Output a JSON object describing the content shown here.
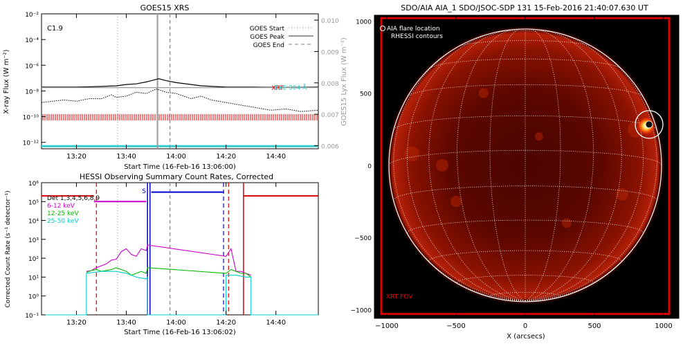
{
  "chart_data": [
    {
      "type": "line",
      "title": "GOES15 XRS",
      "xlabel": "Start Time (16-Feb-16 13:06:00)",
      "ylabel": "X-ray Flux (W m⁻²)",
      "ylabel_right": "GOES15 Lyx Flux (W m⁻²)",
      "annotation": "C1.9",
      "x_ticks": [
        "13:20",
        "13:40",
        "14:00",
        "14:20",
        "14:40"
      ],
      "x_tick_minutes": [
        20,
        40,
        60,
        80,
        100
      ],
      "xlim_minutes": [
        6,
        117
      ],
      "y_ticks": [
        "10⁻²",
        "10⁻⁴",
        "10⁻⁶",
        "10⁻⁸",
        "10⁻¹⁰",
        "10⁻¹²"
      ],
      "ylim_log": [
        -12.5,
        -2
      ],
      "y_right_ticks": [
        "0.010",
        "0.009",
        "0.008",
        "0.007",
        "0.006"
      ],
      "y_right_lim": [
        0.0059,
        0.0102
      ],
      "legend": [
        "GOES Start",
        "GOES Peak",
        "GOES End"
      ],
      "legend_position": "top-right",
      "event_lines_minutes": {
        "start": 36.5,
        "peak": 52.5,
        "end": 57.5
      },
      "curve_labels": [
        {
          "text": "XRT",
          "color": "#dd0000"
        },
        {
          "text": "EVE 304 Å",
          "color": "#33cccc"
        }
      ],
      "series": [
        {
          "name": "upper channel",
          "color": "#000000",
          "style": "solid",
          "x": [
            6,
            20,
            30,
            36,
            40,
            44,
            48,
            52,
            53,
            56,
            60,
            66,
            70,
            80,
            90,
            100,
            110,
            117
          ],
          "y": [
            -7.7,
            -7.7,
            -7.65,
            -7.6,
            -7.5,
            -7.45,
            -7.3,
            -7.1,
            -7.05,
            -7.2,
            -7.35,
            -7.5,
            -7.6,
            -7.7,
            -7.7,
            -7.72,
            -7.72,
            -7.7
          ]
        },
        {
          "name": "lower channel",
          "color": "#000000",
          "style": "dotted",
          "x": [
            6,
            15,
            20,
            25,
            30,
            34,
            36,
            40,
            44,
            48,
            52,
            53,
            56,
            60,
            66,
            70,
            74,
            80,
            86,
            92,
            98,
            104,
            110,
            117
          ],
          "y": [
            -8.9,
            -8.7,
            -8.8,
            -8.6,
            -8.6,
            -8.3,
            -8.5,
            -8.4,
            -8.1,
            -8.2,
            -7.85,
            -7.9,
            -8.1,
            -8.2,
            -8.6,
            -8.4,
            -8.7,
            -8.9,
            -9.1,
            -9.3,
            -9.5,
            -9.4,
            -9.6,
            -9.5
          ]
        },
        {
          "name": "Lyx flux",
          "color": "#999999",
          "style": "solid",
          "axis": "right",
          "x": [
            6,
            117
          ],
          "y": [
            0.00785,
            0.00785
          ]
        }
      ]
    },
    {
      "type": "line",
      "title": "HESSI Observing Summary Count Rates, Corrected",
      "xlabel": "Start Time (16-Feb-16 13:06:02)",
      "ylabel": "Corrected Count Rate (s⁻¹ detector⁻¹)",
      "x_ticks": [
        "13:20",
        "13:40",
        "14:00",
        "14:20",
        "14:40"
      ],
      "x_tick_minutes": [
        20,
        40,
        60,
        80,
        100
      ],
      "xlim_minutes": [
        6,
        117
      ],
      "y_ticks": [
        "10⁶",
        "10⁵",
        "10⁴",
        "10³",
        "10²",
        "10¹",
        "10⁰",
        "10⁻¹"
      ],
      "ylim_log": [
        -1,
        6
      ],
      "annotations": [
        {
          "text": "S",
          "color": "#0000cc"
        }
      ],
      "legend": [
        {
          "text": "Det 1,3,4,5,6,8,9",
          "color": "#000000"
        },
        {
          "text": "6-12 keV",
          "color": "#cc00cc"
        },
        {
          "text": "12-25 keV",
          "color": "#00bb00"
        },
        {
          "text": "25-50 keV",
          "color": "#00cccc"
        }
      ],
      "legend_position": "top-left",
      "markers": {
        "red_dashed": [
          28,
          81
        ],
        "grey_dotted": [
          36.5
        ],
        "grey_dashed": [
          57.5
        ],
        "blue_solid": [
          48.5,
          49.5
        ],
        "blue_dashed": [
          79
        ],
        "red_solid": [
          87
        ]
      },
      "segments": [
        {
          "color": "#dd0000",
          "x": [
            6,
            27
          ],
          "y": [
            5.3,
            5.3
          ]
        },
        {
          "color": "#cc00cc",
          "x": [
            27,
            48
          ],
          "y": [
            5.0,
            5.0
          ]
        },
        {
          "color": "#0000cc",
          "x": [
            50,
            79
          ],
          "y": [
            5.5,
            5.5
          ]
        },
        {
          "color": "#dd0000",
          "x": [
            87,
            117
          ],
          "y": [
            5.3,
            5.3
          ]
        }
      ],
      "series": [
        {
          "name": "6-12 keV",
          "color": "#cc00cc",
          "x": [
            24,
            26,
            28,
            30,
            32,
            34,
            36,
            38,
            40,
            42,
            44,
            46,
            48,
            48.5,
            80,
            82,
            84,
            86,
            88,
            90
          ],
          "y": [
            1.3,
            1.35,
            1.5,
            1.6,
            1.7,
            1.9,
            1.95,
            2.35,
            2.5,
            2.2,
            2.1,
            2.5,
            2.4,
            2.7,
            2.1,
            2.5,
            1.3,
            1.3,
            1.2,
            1.1
          ]
        },
        {
          "name": "12-25 keV",
          "color": "#00bb00",
          "x": [
            24,
            26,
            28,
            30,
            32,
            34,
            36,
            38,
            40,
            42,
            44,
            46,
            48,
            48.5,
            80,
            82,
            84,
            86,
            88,
            90
          ],
          "y": [
            1.25,
            1.35,
            1.4,
            1.3,
            1.35,
            1.4,
            1.5,
            1.4,
            1.3,
            1.1,
            1.2,
            1.3,
            1.2,
            1.5,
            1.2,
            1.4,
            1.3,
            1.2,
            1.2,
            1.0
          ]
        },
        {
          "name": "25-50 keV",
          "color": "#00cccc",
          "x": [
            6,
            24,
            24,
            30,
            36,
            40,
            44,
            48,
            48.5,
            48.5,
            80,
            80,
            84,
            88,
            90,
            90,
            117
          ],
          "y": [
            -1,
            -1,
            1.2,
            1.3,
            1.3,
            1.2,
            1.0,
            0.9,
            1.0,
            -1,
            -1,
            1.1,
            1.1,
            1.0,
            1.0,
            -1,
            -1
          ]
        }
      ]
    },
    {
      "type": "scatter",
      "title": "SDO/AIA AIA_1 SDO/JSOC-SDP 131 15-Feb-2016 21:40:07.630 UT",
      "xlabel": "X (arcsecs)",
      "ylabel": "",
      "x_ticks": [
        "−1000",
        "−500",
        "0",
        "500",
        "1000"
      ],
      "x_tick_values": [
        -1000,
        -500,
        0,
        500,
        1000
      ],
      "y_ticks": [
        "1000",
        "500",
        "0",
        "−500",
        "−1000"
      ],
      "y_tick_values": [
        1000,
        500,
        0,
        -500,
        -1000
      ],
      "xlim": [
        -1090,
        1110
      ],
      "ylim": [
        -1060,
        1040
      ],
      "legend": [
        "AIA flare location",
        "RHESSI contours"
      ],
      "legend_position": "top-left",
      "fov_label": "XRT FOV",
      "solar_radius_arcsec": 985,
      "flare_location": {
        "x": 895,
        "y": 283
      },
      "fov_box": {
        "x": [
          -1040,
          1040
        ],
        "y": [
          -1030,
          1020
        ]
      }
    }
  ]
}
